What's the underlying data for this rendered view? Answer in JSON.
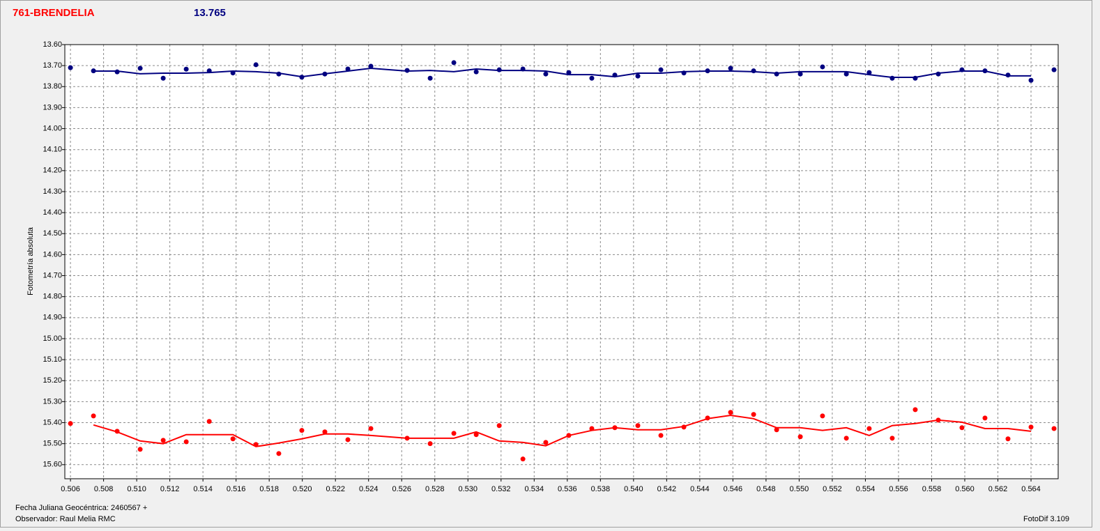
{
  "chart_data": {
    "type": "scatter-line",
    "title": "761-BRENDELIA",
    "subtitle": "13.765",
    "y_label": "Fotometría absoluta",
    "footer_left": [
      "Fecha Juliana Geocéntrica: 2460567 +",
      "Observador: Raul Melia RMC"
    ],
    "footer_right": "FotoDif 3.109",
    "xlim": [
      0.50566,
      0.56564
    ],
    "ylim": [
      13.6,
      15.667
    ],
    "y_inverted": true,
    "grid": true,
    "xticks": [
      0.506,
      0.508,
      {
        "value": 0.51,
        "label": "0.510"
      },
      0.512,
      0.514,
      0.516,
      0.518,
      {
        "value": 0.52,
        "label": "0.520"
      },
      0.522,
      0.524,
      0.526,
      0.528,
      {
        "value": 0.53,
        "label": "0.530"
      },
      0.532,
      0.534,
      0.536,
      0.538,
      {
        "value": 0.54,
        "label": "0.540"
      },
      0.542,
      0.544,
      0.546,
      0.548,
      {
        "value": 0.55,
        "label": "0.550"
      },
      0.552,
      0.554,
      0.556,
      0.558,
      {
        "value": 0.56,
        "label": "0.560"
      },
      0.562,
      0.564
    ],
    "yticks": [
      {
        "value": 13.6,
        "label": "13.60"
      },
      {
        "value": 13.7,
        "label": "13.70"
      },
      {
        "value": 13.8,
        "label": "13.80"
      },
      {
        "value": 13.9,
        "label": "13.90"
      },
      {
        "value": 14.0,
        "label": "14.00"
      },
      {
        "value": 14.1,
        "label": "14.10"
      },
      {
        "value": 14.2,
        "label": "14.20"
      },
      {
        "value": 14.3,
        "label": "14.30"
      },
      {
        "value": 14.4,
        "label": "14.40"
      },
      {
        "value": 14.5,
        "label": "14.50"
      },
      {
        "value": 14.6,
        "label": "14.60"
      },
      {
        "value": 14.7,
        "label": "14.70"
      },
      {
        "value": 14.8,
        "label": "14.80"
      },
      {
        "value": 14.9,
        "label": "14.90"
      },
      {
        "value": 15.0,
        "label": "15.00"
      },
      {
        "value": 15.1,
        "label": "15.10"
      },
      {
        "value": 15.2,
        "label": "15.20"
      },
      {
        "value": 15.3,
        "label": "15.30"
      },
      {
        "value": 15.4,
        "label": "15.40"
      },
      {
        "value": 15.5,
        "label": "15.50"
      },
      {
        "value": 15.6,
        "label": "15.60"
      }
    ],
    "series": [
      {
        "style": "points",
        "color": "#000080",
        "x": [
          0.506,
          0.50739,
          0.50882,
          0.51021,
          0.5116,
          0.51299,
          0.51438,
          0.51581,
          0.5172,
          0.51858,
          0.51997,
          0.52136,
          0.52275,
          0.52414,
          0.52633,
          0.52772,
          0.52915,
          0.5305,
          0.53189,
          0.53332,
          0.5347,
          0.53609,
          0.53748,
          0.53887,
          0.54026,
          0.54165,
          0.54304,
          0.54447,
          0.54586,
          0.54725,
          0.54864,
          0.55007,
          0.55141,
          0.55285,
          0.55423,
          0.55562,
          0.55701,
          0.5584,
          0.55983,
          0.56122,
          0.56261,
          0.564,
          0.56539
        ],
        "values": [
          13.71,
          13.725,
          13.73,
          13.713,
          13.76,
          13.717,
          13.725,
          13.735,
          13.696,
          13.74,
          13.755,
          13.74,
          13.716,
          13.703,
          13.723,
          13.76,
          13.686,
          13.73,
          13.72,
          13.716,
          13.74,
          13.733,
          13.76,
          13.745,
          13.75,
          13.72,
          13.735,
          13.725,
          13.713,
          13.725,
          13.74,
          13.74,
          13.706,
          13.74,
          13.733,
          13.76,
          13.76,
          13.74,
          13.72,
          13.725,
          13.745,
          13.77,
          13.72
        ]
      },
      {
        "style": "line",
        "color": "#000080",
        "x": [
          0.50739,
          0.50882,
          0.51021,
          0.5116,
          0.51299,
          0.51438,
          0.51581,
          0.5172,
          0.51858,
          0.51997,
          0.52136,
          0.52275,
          0.52414,
          0.52633,
          0.52772,
          0.52915,
          0.5305,
          0.53189,
          0.53332,
          0.5347,
          0.53609,
          0.53748,
          0.53887,
          0.54026,
          0.54165,
          0.54304,
          0.54447,
          0.54586,
          0.54725,
          0.54864,
          0.55007,
          0.55141,
          0.55285,
          0.55423,
          0.55562,
          0.55701,
          0.5584,
          0.55983,
          0.56122,
          0.56261,
          0.564
        ],
        "values": [
          13.726,
          13.726,
          13.739,
          13.736,
          13.736,
          13.733,
          13.726,
          13.729,
          13.736,
          13.753,
          13.739,
          13.726,
          13.713,
          13.726,
          13.723,
          13.729,
          13.716,
          13.723,
          13.723,
          13.726,
          13.743,
          13.743,
          13.753,
          13.736,
          13.736,
          13.729,
          13.726,
          13.726,
          13.729,
          13.736,
          13.729,
          13.729,
          13.729,
          13.743,
          13.756,
          13.756,
          13.736,
          13.726,
          13.726,
          13.749,
          13.749
        ]
      },
      {
        "style": "points",
        "color": "#ff0000",
        "x": [
          0.506,
          0.50739,
          0.50882,
          0.51021,
          0.5116,
          0.51299,
          0.51438,
          0.51581,
          0.5172,
          0.51858,
          0.51997,
          0.52136,
          0.52275,
          0.52414,
          0.52633,
          0.52772,
          0.52915,
          0.5305,
          0.53189,
          0.53332,
          0.5347,
          0.53609,
          0.53748,
          0.53887,
          0.54026,
          0.54165,
          0.54304,
          0.54447,
          0.54586,
          0.54725,
          0.54864,
          0.55007,
          0.55141,
          0.55285,
          0.55423,
          0.55562,
          0.55701,
          0.5584,
          0.55983,
          0.56122,
          0.56261,
          0.564,
          0.56539
        ],
        "values": [
          15.404,
          15.368,
          15.441,
          15.527,
          15.484,
          15.491,
          15.394,
          15.477,
          15.504,
          15.547,
          15.437,
          15.444,
          15.481,
          15.428,
          15.474,
          15.5,
          15.451,
          15.457,
          15.414,
          15.573,
          15.494,
          15.461,
          15.428,
          15.424,
          15.414,
          15.461,
          15.421,
          15.378,
          15.351,
          15.361,
          15.434,
          15.467,
          15.368,
          15.474,
          15.428,
          15.474,
          15.338,
          15.388,
          15.424,
          15.378,
          15.477,
          15.421,
          15.428
        ]
      },
      {
        "style": "line",
        "color": "#ff0000",
        "x": [
          0.50739,
          0.50882,
          0.51021,
          0.5116,
          0.51299,
          0.51438,
          0.51581,
          0.5172,
          0.51858,
          0.51997,
          0.52136,
          0.52275,
          0.52414,
          0.52633,
          0.52772,
          0.52915,
          0.5305,
          0.53189,
          0.53332,
          0.5347,
          0.53609,
          0.53748,
          0.53887,
          0.54026,
          0.54165,
          0.54304,
          0.54447,
          0.54586,
          0.54725,
          0.54864,
          0.55007,
          0.55141,
          0.55285,
          0.55423,
          0.55562,
          0.55701,
          0.5584,
          0.55983,
          0.56122,
          0.56261,
          0.564
        ],
        "values": [
          15.411,
          15.444,
          15.487,
          15.5,
          15.457,
          15.457,
          15.457,
          15.514,
          15.497,
          15.477,
          15.454,
          15.454,
          15.461,
          15.474,
          15.474,
          15.474,
          15.444,
          15.487,
          15.494,
          15.51,
          15.461,
          15.437,
          15.424,
          15.434,
          15.434,
          15.418,
          15.381,
          15.365,
          15.381,
          15.424,
          15.424,
          15.437,
          15.424,
          15.461,
          15.414,
          15.404,
          15.388,
          15.398,
          15.428,
          15.428,
          15.441
        ]
      }
    ]
  }
}
